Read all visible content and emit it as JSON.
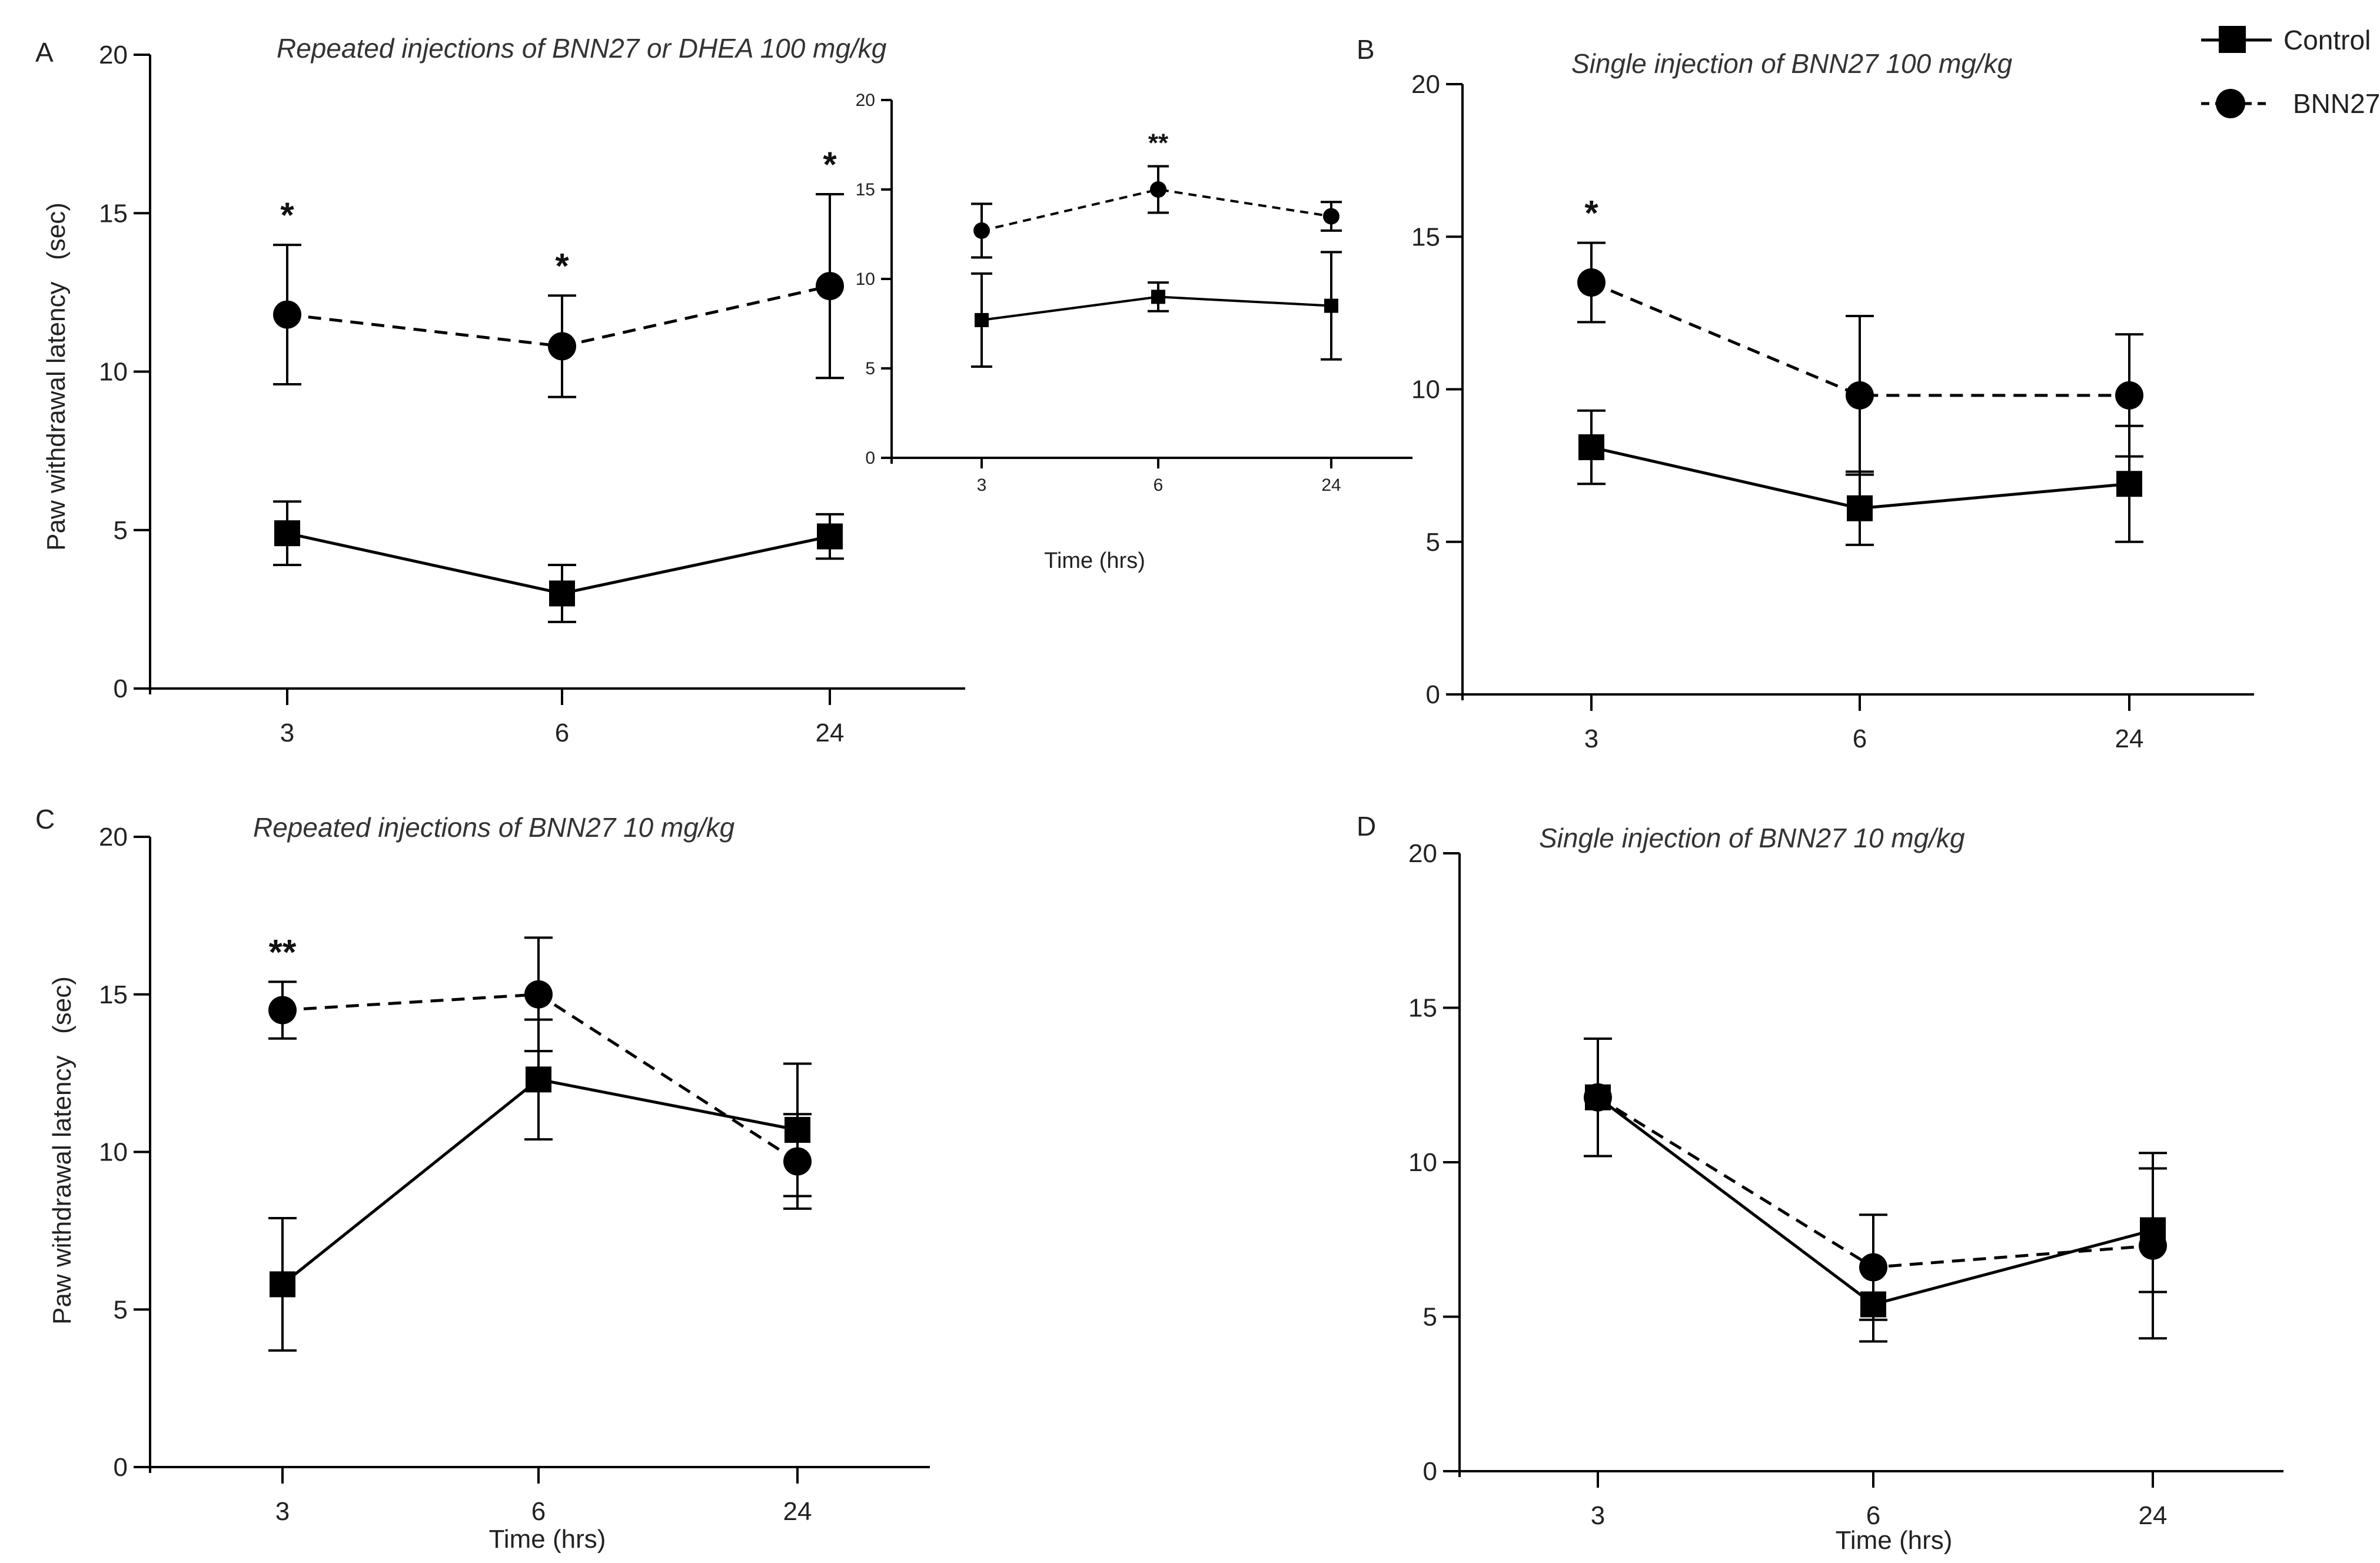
{
  "legend": {
    "control": "Control",
    "bnn27": "BNN27"
  },
  "chart_data": [
    {
      "panel": "A",
      "type": "line",
      "title": "Repeated injections of BNN27 or DHEA 100 mg/kg",
      "ylabel": "Paw withdrawal latency   (sec)",
      "xlabel": "",
      "categories": [
        "3",
        "6",
        "24"
      ],
      "ylim": [
        0,
        20
      ],
      "yticks": [
        "0",
        "5",
        "10",
        "15",
        "20"
      ],
      "series": [
        {
          "name": "Control",
          "values": [
            4.9,
            3.0,
            4.8
          ],
          "err": [
            1.0,
            0.9,
            0.7
          ]
        },
        {
          "name": "BNN27",
          "values": [
            11.8,
            10.8,
            12.7
          ],
          "err": [
            2.2,
            1.6,
            2.9
          ]
        }
      ],
      "annotations": [
        "*",
        "*",
        "*"
      ],
      "inset": {
        "type": "line",
        "xlabel": "Time (hrs)",
        "categories": [
          "3",
          "6",
          "24"
        ],
        "ylim": [
          0,
          20
        ],
        "yticks": [
          "0",
          "5",
          "10",
          "15",
          "20"
        ],
        "series": [
          {
            "name": "Control",
            "values": [
              7.7,
              9.0,
              8.5
            ],
            "err": [
              2.6,
              0.8,
              3.0
            ]
          },
          {
            "name": "BNN27",
            "values": [
              12.7,
              15.0,
              13.5
            ],
            "err": [
              1.5,
              1.3,
              0.8
            ]
          }
        ],
        "annotations": [
          "",
          "**",
          ""
        ]
      }
    },
    {
      "panel": "B",
      "type": "line",
      "title": "Single injection of BNN27 100 mg/kg",
      "ylabel": "",
      "xlabel": "",
      "categories": [
        "3",
        "6",
        "24"
      ],
      "ylim": [
        0,
        20
      ],
      "yticks": [
        "0",
        "5",
        "10",
        "15",
        "20"
      ],
      "series": [
        {
          "name": "Control",
          "values": [
            8.1,
            6.1,
            6.9
          ],
          "err": [
            1.2,
            1.2,
            1.9
          ]
        },
        {
          "name": "BNN27",
          "values": [
            13.5,
            9.8,
            9.8
          ],
          "err": [
            1.3,
            2.6,
            2.0
          ]
        }
      ],
      "annotations": [
        "*",
        "",
        ""
      ]
    },
    {
      "panel": "C",
      "type": "line",
      "title": "Repeated injections of BNN27 10 mg/kg",
      "ylabel": "Paw withdrawal latency   (sec)",
      "xlabel": "Time (hrs)",
      "categories": [
        "3",
        "6",
        "24"
      ],
      "ylim": [
        0,
        20
      ],
      "yticks": [
        "0",
        "5",
        "10",
        "15",
        "20"
      ],
      "series": [
        {
          "name": "Control",
          "values": [
            5.8,
            12.3,
            10.7
          ],
          "err": [
            2.1,
            1.9,
            2.1
          ]
        },
        {
          "name": "BNN27",
          "values": [
            14.5,
            15.0,
            9.7
          ],
          "err": [
            0.9,
            1.8,
            1.5
          ]
        }
      ],
      "annotations": [
        "**",
        "",
        ""
      ]
    },
    {
      "panel": "D",
      "type": "line",
      "title": "Single injection of BNN27 10 mg/kg",
      "ylabel": "",
      "xlabel": "Time (hrs)",
      "categories": [
        "3",
        "6",
        "24"
      ],
      "ylim": [
        0,
        20
      ],
      "yticks": [
        "0",
        "5",
        "10",
        "15",
        "20"
      ],
      "series": [
        {
          "name": "Control",
          "values": [
            12.1,
            5.4,
            7.8
          ],
          "err": [
            1.9,
            1.2,
            2.0
          ]
        },
        {
          "name": "BNN27",
          "values": [
            12.1,
            6.6,
            7.3
          ],
          "err": [
            1.9,
            1.7,
            3.0
          ]
        }
      ],
      "annotations": [
        "",
        "",
        ""
      ]
    }
  ]
}
